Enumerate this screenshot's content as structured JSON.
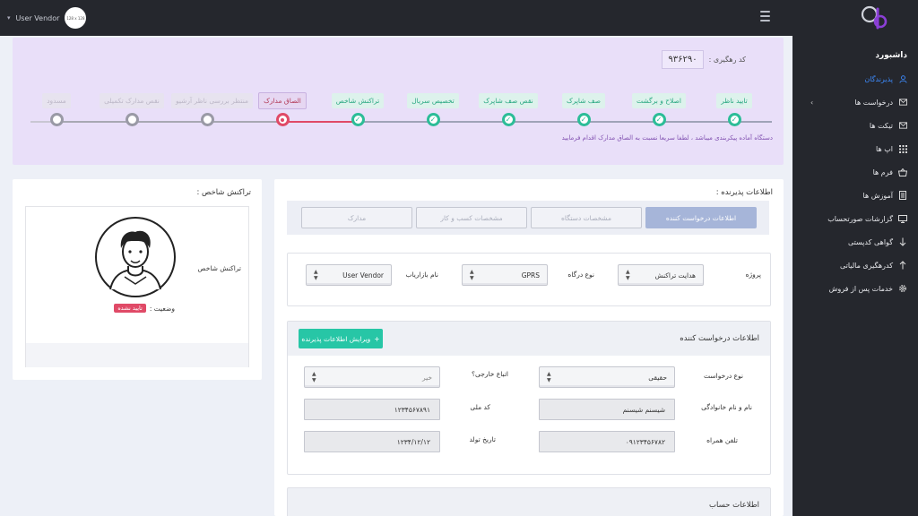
{
  "topbar": {
    "user_name": "User Vendor",
    "avatar_text": "128 x 128"
  },
  "sidebar": {
    "title": "داشبورد",
    "items": [
      {
        "label": "پذیرندگان",
        "icon": "user-icon",
        "active": true
      },
      {
        "label": "درخواست ها",
        "icon": "mail-icon",
        "has_arrow": true
      },
      {
        "label": "تیکت ها",
        "icon": "mail-icon"
      },
      {
        "label": "اپ ها",
        "icon": "grid-icon"
      },
      {
        "label": "فرم ها",
        "icon": "basket-icon"
      },
      {
        "label": "آموزش ها",
        "icon": "document-icon"
      },
      {
        "label": "گزارشات صورتحساب",
        "icon": "monitor-icon"
      },
      {
        "label": "گواهی کدپستی",
        "icon": "arrow-down-icon"
      },
      {
        "label": "کدرهگیری مالیاتی",
        "icon": "arrow-up-icon"
      },
      {
        "label": "خدمات پس از فروش",
        "icon": "gear-icon"
      }
    ]
  },
  "progress": {
    "tracking_label": "کد رهگیری :",
    "tracking_code": "۹۳۶۲۹۰",
    "steps": [
      {
        "label": "تایید ناظر",
        "state": "done"
      },
      {
        "label": "اصلاح و برگشت",
        "state": "done"
      },
      {
        "label": "صف شاپرک",
        "state": "done"
      },
      {
        "label": "نقص صف شاپرک",
        "state": "done"
      },
      {
        "label": "تخصیص سریال",
        "state": "done"
      },
      {
        "label": "تراکنش شاخص",
        "state": "done"
      },
      {
        "label": "الصاق مدارک",
        "state": "current"
      },
      {
        "label": "منتظر بررسی ناظر آرشیو",
        "state": "pending"
      },
      {
        "label": "نقص مدارک تکمیلی",
        "state": "pending"
      },
      {
        "label": "مسدود",
        "state": "pending"
      }
    ],
    "notice": "دستگاه آماده پیکربندی میباشد ، لطفا سریعا نسبت به الصاق مدارک اقدام فرمایید",
    "colors": {
      "done": "#2dbd98",
      "current": "#e04a67",
      "pending": "#9a9aa6"
    }
  },
  "acceptor": {
    "title": "اطلاعات پذیرنده :",
    "tabs": [
      "اطلاعات درخواست کننده",
      "مشخصات دستگاه",
      "مشخصات کسب و کار",
      "مدارک"
    ],
    "project_label": "پروژه",
    "project_value": "هدایت تراکنش",
    "gateway_label": "نوع درگاه",
    "gateway_value": "GPRS",
    "marketer_label": "نام بازاریاب",
    "marketer_value": "User Vendor"
  },
  "requester": {
    "title": "اطلاعات درخواست کننده",
    "edit_button": "ویرایش اطلاعات پذیرنده",
    "request_type_label": "نوع درخواست",
    "request_type_value": "حقیقی",
    "foreign_label": "اتباع خارجی؟",
    "foreign_value": "خیر",
    "name_label": "نام و نام خانوادگی",
    "name_value": "شیسنم شیسنم",
    "national_code_label": "کد ملی",
    "national_code_value": "۱۲۳۴۵۶۷۸۹۱",
    "phone_label": "تلفن همراه",
    "phone_value": "۰۹۱۲۳۴۵۶۷۸۲",
    "birth_label": "تاریخ تولد",
    "birth_value": "۱۲۳۴/۱۲/۱۲"
  },
  "account": {
    "title": "اطلاعات حساب"
  },
  "indicator": {
    "title": "تراکنش شاخص :",
    "name": "تراکنش شاخص",
    "status_label": "وضعیت :",
    "status_value": "تایید نشده"
  }
}
